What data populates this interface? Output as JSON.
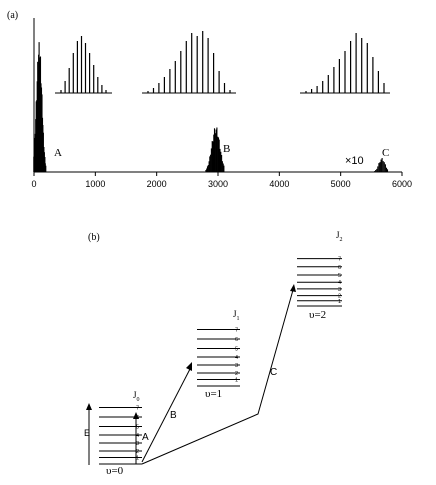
{
  "panel_a": {
    "label": "(a)",
    "x_ticks": [
      "0",
      "1000",
      "2000",
      "3000",
      "4000",
      "5000",
      "6000"
    ],
    "peak_labels": [
      "A",
      "B",
      "C"
    ],
    "scale_note": "×10"
  },
  "panel_b": {
    "label": "(b)",
    "levels": [
      {
        "v_label": "υ=0",
        "j_label": "J",
        "j_sub": "0",
        "j_numbers": [
          "1",
          "2",
          "3",
          "4",
          "5",
          "6",
          "7"
        ]
      },
      {
        "v_label": "υ=1",
        "j_label": "J",
        "j_sub": "1",
        "j_numbers": [
          "1",
          "2",
          "3",
          "4",
          "5",
          "6",
          "7"
        ]
      },
      {
        "v_label": "υ=2",
        "j_label": "J",
        "j_sub": "2",
        "j_numbers": [
          "1",
          "2",
          "3",
          "4",
          "5",
          "6",
          "7"
        ]
      }
    ],
    "transition_labels": [
      "A",
      "B",
      "C"
    ],
    "energy_label": "E"
  },
  "chart_data": {
    "type": "bar",
    "x_range": [
      0,
      6000
    ],
    "x_ticks": [
      0,
      1000,
      2000,
      3000,
      4000,
      5000,
      6000
    ],
    "bands": [
      {
        "name": "A",
        "center": 100,
        "peak_height": 1.0
      },
      {
        "name": "B",
        "center": 2950,
        "peak_height": 0.4
      },
      {
        "name": "C",
        "center": 5650,
        "peak_height": 0.1,
        "note": "×10"
      }
    ]
  }
}
